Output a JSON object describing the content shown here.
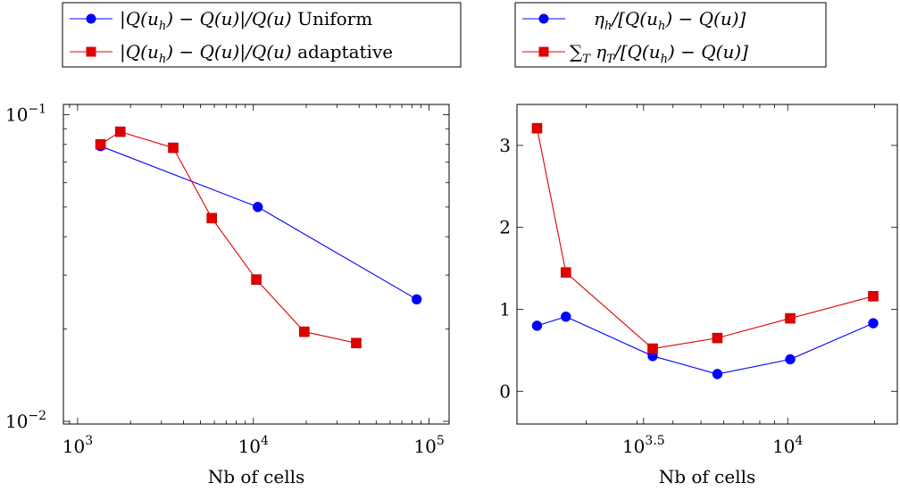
{
  "colors": {
    "blue": "#0000ff",
    "red": "#e00000"
  },
  "chart_data": [
    {
      "type": "line",
      "xscale": "log",
      "yscale": "log",
      "xlabel": "Nb of cells",
      "ylabel": "",
      "xlim": [
        830,
        130000
      ],
      "ylim": [
        0.0098,
        0.108
      ],
      "grid": false,
      "legend_position": "above",
      "xticks": [
        {
          "value": 1000,
          "base": "10",
          "exp": "3"
        },
        {
          "value": 10000,
          "base": "10",
          "exp": "4"
        },
        {
          "value": 100000,
          "base": "10",
          "exp": "5"
        }
      ],
      "yticks": [
        {
          "value": 0.01,
          "base": "10",
          "exp": "−2"
        },
        {
          "value": 0.1,
          "base": "10",
          "exp": "−1"
        }
      ],
      "series": [
        {
          "name": "|Q(u_h) − Q(u)|/Q(u) Uniform",
          "legend": {
            "lhs": "|Q(u",
            "sub": "h",
            "rhs": ") − Q(u)|/Q(u)",
            "suffix": " Uniform"
          },
          "color": "blue",
          "marker": "circle",
          "x": [
            1350,
            10600,
            85000
          ],
          "y": [
            0.079,
            0.05,
            0.025
          ]
        },
        {
          "name": "|Q(u_h) − Q(u)|/Q(u) adaptative",
          "legend": {
            "lhs": "|Q(u",
            "sub": "h",
            "rhs": ") − Q(u)|/Q(u)",
            "suffix": " adaptative"
          },
          "color": "red",
          "marker": "square",
          "x": [
            1350,
            1750,
            3500,
            5800,
            10400,
            19500,
            38500
          ],
          "y": [
            0.08,
            0.088,
            0.078,
            0.046,
            0.029,
            0.0196,
            0.018
          ]
        }
      ]
    },
    {
      "type": "line",
      "xscale": "log",
      "yscale": "linear",
      "xlabel": "Nb of cells",
      "ylabel": "",
      "xlim": [
        1150,
        24000
      ],
      "ylim": [
        -0.4,
        3.5
      ],
      "grid": false,
      "legend_position": "above",
      "xticks": [
        {
          "value": 3162.28,
          "base": "10",
          "exp": "3.5"
        },
        {
          "value": 10000,
          "base": "10",
          "exp": "4"
        }
      ],
      "yticks": [
        {
          "value": 0,
          "label": "0"
        },
        {
          "value": 1,
          "label": "1"
        },
        {
          "value": 2,
          "label": "2"
        },
        {
          "value": 3,
          "label": "3"
        }
      ],
      "series": [
        {
          "name": "η_h/[Q(u_h) − Q(u)]",
          "legend": {
            "kind": "eta_h"
          },
          "color": "blue",
          "marker": "circle",
          "x": [
            1350,
            1700,
            3400,
            5700,
            10200,
            19800
          ],
          "y": [
            0.8,
            0.91,
            0.43,
            0.21,
            0.39,
            0.83
          ]
        },
        {
          "name": "Σ_T η_T/[Q(u_h) − Q(u)]",
          "legend": {
            "kind": "sum_eta_T"
          },
          "color": "red",
          "marker": "square",
          "x": [
            1350,
            1700,
            3400,
            5700,
            10200,
            19800
          ],
          "y": [
            3.21,
            1.45,
            0.52,
            0.65,
            0.89,
            1.16
          ]
        }
      ]
    }
  ]
}
